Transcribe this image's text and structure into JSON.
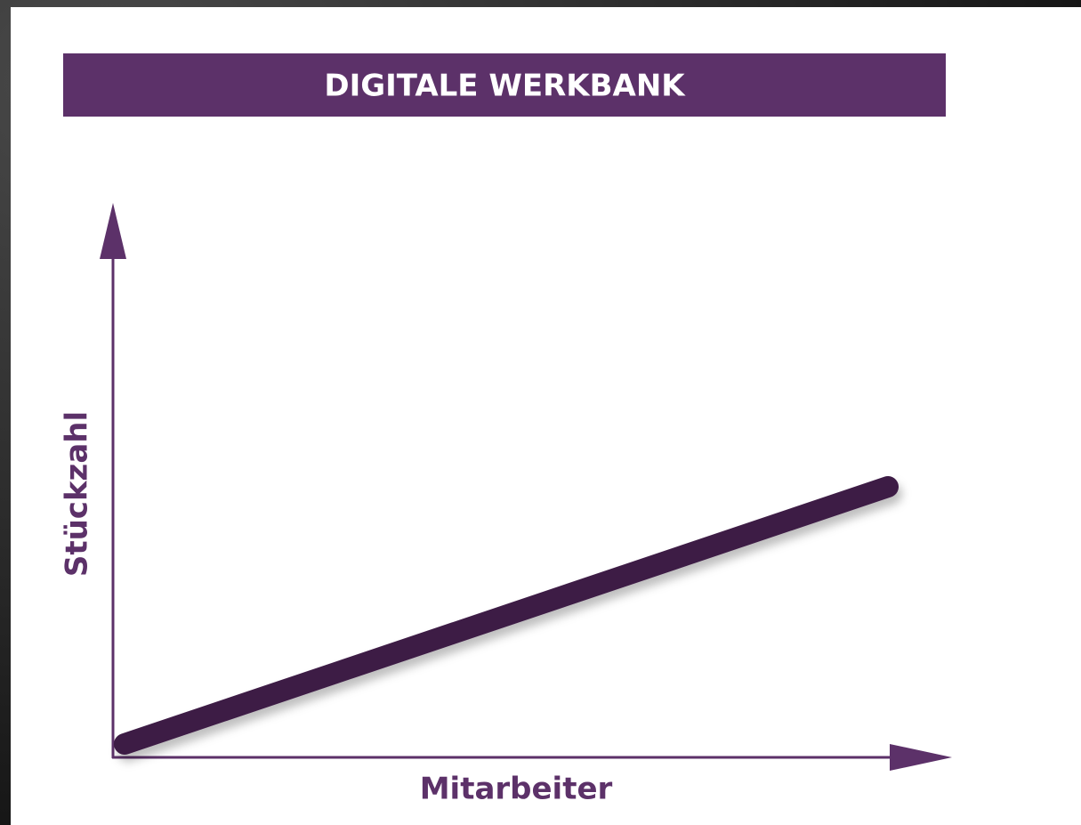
{
  "header": {
    "title": "DIGITALE WERKBANK"
  },
  "axes": {
    "y_label": "Stückzahl",
    "x_label": "Mitarbeiter"
  }
}
